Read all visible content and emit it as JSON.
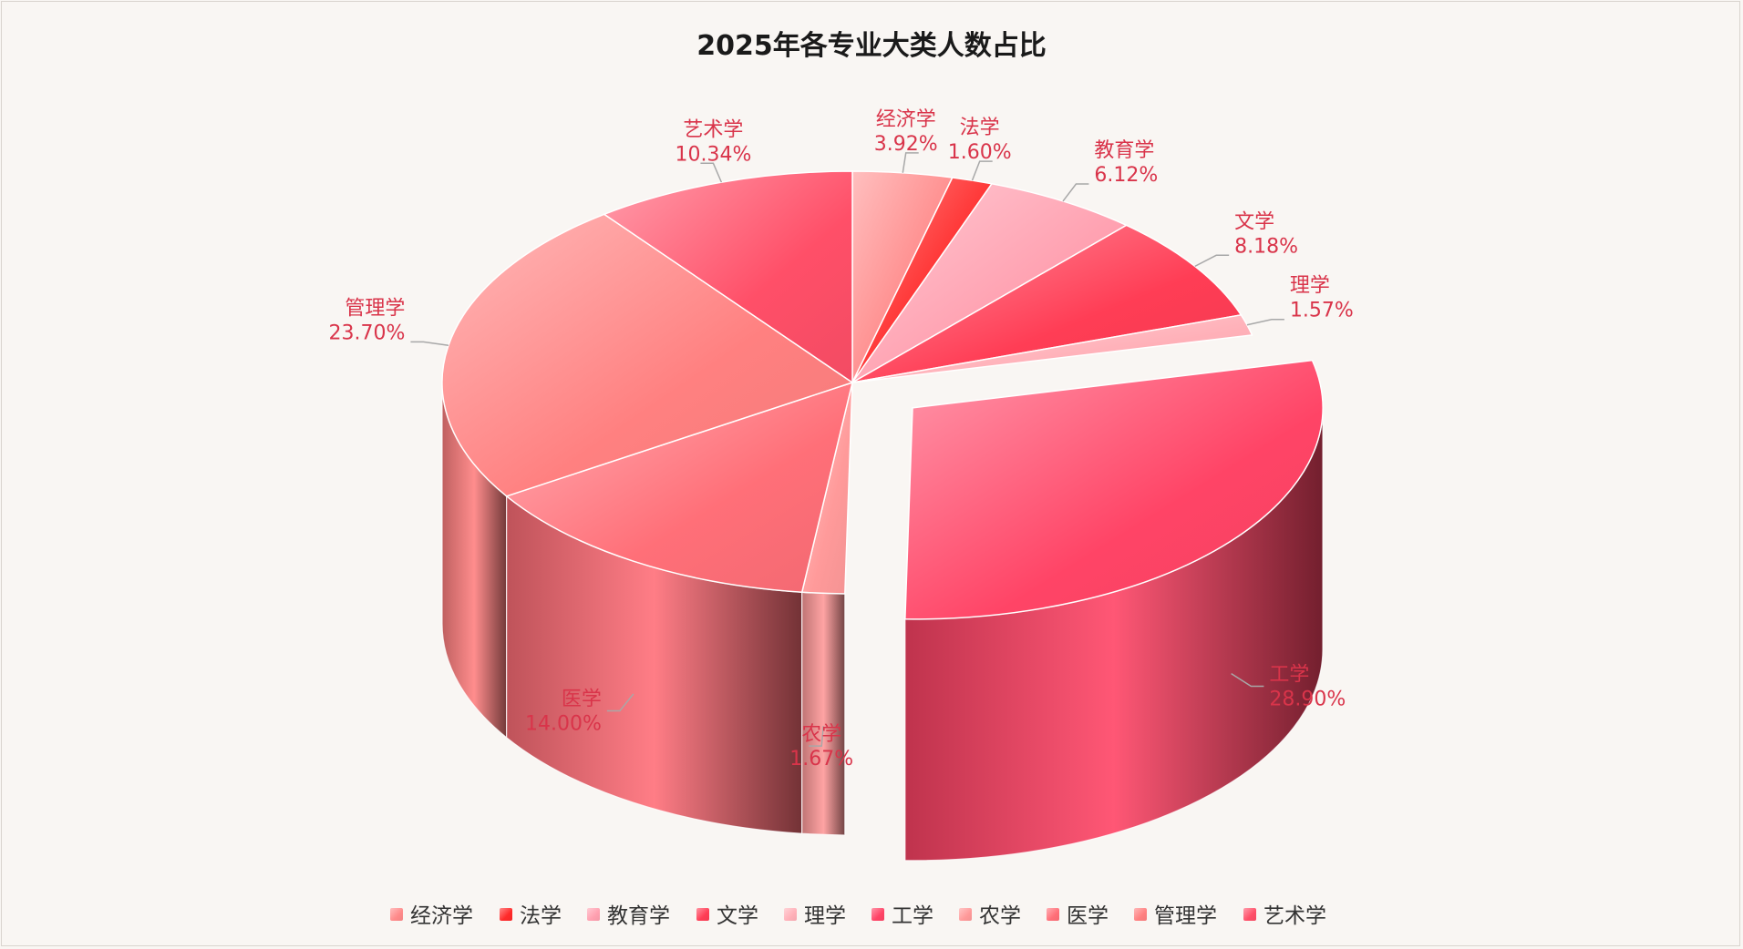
{
  "chart_data": {
    "type": "pie",
    "title": "2025年各专业大类人数占比",
    "legend_position": "bottom",
    "unit": "%",
    "slices": [
      {
        "name": "经济学",
        "value": 3.92,
        "label": "3.92%",
        "color": "#ff8a8a"
      },
      {
        "name": "法学",
        "value": 1.6,
        "label": "1.60%",
        "color": "#ff2a2a"
      },
      {
        "name": "教育学",
        "value": 6.12,
        "label": "6.12%",
        "color": "#ffa0b0"
      },
      {
        "name": "文学",
        "value": 8.18,
        "label": "8.18%",
        "color": "#ff3d55"
      },
      {
        "name": "理学",
        "value": 1.57,
        "label": "1.57%",
        "color": "#ffb0b8"
      },
      {
        "name": "工学",
        "value": 28.9,
        "label": "28.90%",
        "color": "#ff4466"
      },
      {
        "name": "农学",
        "value": 1.67,
        "label": "1.67%",
        "color": "#ff9a9a"
      },
      {
        "name": "医学",
        "value": 14.0,
        "label": "14.00%",
        "color": "#ff6f78"
      },
      {
        "name": "管理学",
        "value": 23.7,
        "label": "23.70%",
        "color": "#ff8080"
      },
      {
        "name": "艺术学",
        "value": 10.34,
        "label": "10.34%",
        "color": "#ff4f68"
      }
    ],
    "exploded": "工学"
  }
}
